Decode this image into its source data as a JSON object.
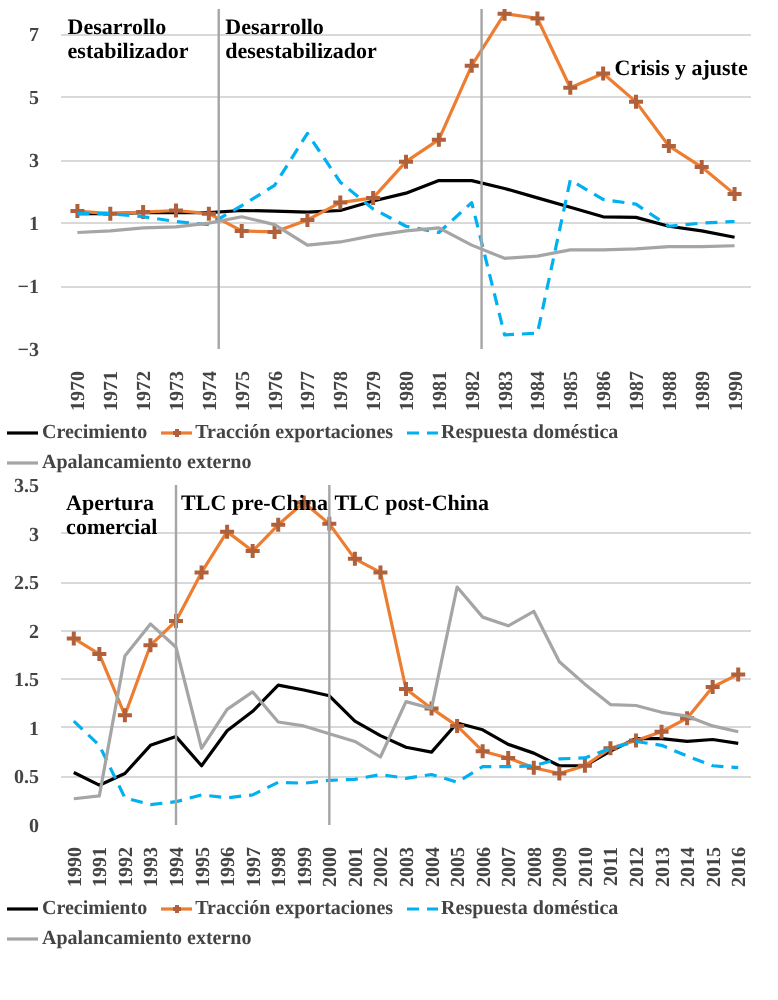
{
  "chart_data": [
    {
      "type": "line",
      "x": [
        1970,
        1971,
        1972,
        1973,
        1974,
        1975,
        1976,
        1977,
        1978,
        1979,
        1980,
        1981,
        1982,
        1983,
        1984,
        1985,
        1986,
        1987,
        1988,
        1989,
        1990
      ],
      "xlim": [
        1969.5,
        1990.5
      ],
      "xticks": [
        1970,
        1971,
        1972,
        1973,
        1974,
        1975,
        1976,
        1977,
        1978,
        1979,
        1980,
        1981,
        1982,
        1983,
        1984,
        1985,
        1986,
        1987,
        1988,
        1989,
        1990
      ],
      "ylim": [
        -3,
        7.8
      ],
      "yticks": [
        -3,
        -1,
        1,
        3,
        5,
        7
      ],
      "grid": "y",
      "legend": "bottom",
      "series": [
        {
          "name": "Crecimiento",
          "color": "#000000",
          "values": [
            1.3,
            1.3,
            1.33,
            1.33,
            1.33,
            1.4,
            1.38,
            1.35,
            1.4,
            1.7,
            1.95,
            2.35,
            2.35,
            2.1,
            1.8,
            1.5,
            1.2,
            1.18,
            0.9,
            0.75,
            0.55
          ]
        },
        {
          "name": "Tracción exportaciones",
          "color": "#ed7d31",
          "marker": "cross",
          "values": [
            1.38,
            1.3,
            1.35,
            1.4,
            1.3,
            0.75,
            0.72,
            1.1,
            1.65,
            1.8,
            2.95,
            3.65,
            6.0,
            7.65,
            7.5,
            5.3,
            5.75,
            4.85,
            3.45,
            2.78,
            1.92
          ]
        },
        {
          "name": "Respuesta doméstica",
          "color": "#00b0f0",
          "line_style": "dashed",
          "values": [
            1.3,
            1.3,
            1.2,
            1.05,
            0.95,
            1.55,
            2.2,
            3.85,
            2.3,
            1.45,
            0.9,
            0.7,
            1.65,
            -2.55,
            -2.5,
            2.37,
            1.75,
            1.6,
            0.9,
            1.0,
            1.05
          ]
        },
        {
          "name": "Apalancamiento externo",
          "color": "#a5a5a5",
          "values": [
            0.7,
            0.75,
            0.85,
            0.88,
            1.0,
            1.2,
            0.95,
            0.3,
            0.4,
            0.6,
            0.75,
            0.85,
            0.3,
            -0.12,
            -0.05,
            0.15,
            0.15,
            0.18,
            0.25,
            0.25,
            0.28
          ]
        }
      ],
      "ref_lines": [
        {
          "axis": "x",
          "value": 1974.3,
          "color": "#a5a5a5"
        },
        {
          "axis": "x",
          "value": 1982.3,
          "color": "#a5a5a5"
        }
      ],
      "annotations": [
        "Desarrollo\nestabilizador",
        "Desarrollo\ndesestabilizador",
        "Crisis y ajuste"
      ]
    },
    {
      "type": "line",
      "x": [
        1990,
        1991,
        1992,
        1993,
        1994,
        1995,
        1996,
        1997,
        1998,
        1999,
        2000,
        2001,
        2002,
        2003,
        2004,
        2005,
        2006,
        2007,
        2008,
        2009,
        2010,
        2011,
        2012,
        2013,
        2014,
        2015,
        2016
      ],
      "xlim": [
        1989.5,
        2016.5
      ],
      "xticks": [
        1990,
        1991,
        1992,
        1993,
        1994,
        1995,
        1996,
        1997,
        1998,
        1999,
        2000,
        2001,
        2002,
        2003,
        2004,
        2005,
        2006,
        2007,
        2008,
        2009,
        2010,
        2011,
        2012,
        2013,
        2014,
        2015,
        2016
      ],
      "ylim": [
        0,
        3.5
      ],
      "yticks": [
        0,
        0.5,
        1,
        1.5,
        2,
        2.5,
        3,
        3.5
      ],
      "grid": "y",
      "legend": "bottom",
      "series": [
        {
          "name": "Crecimiento",
          "color": "#000000",
          "values": [
            0.54,
            0.41,
            0.53,
            0.82,
            0.91,
            0.61,
            0.97,
            1.17,
            1.44,
            1.39,
            1.33,
            1.07,
            0.92,
            0.8,
            0.75,
            1.05,
            0.98,
            0.83,
            0.74,
            0.61,
            0.61,
            0.76,
            0.89,
            0.89,
            0.86,
            0.88,
            0.84
          ]
        },
        {
          "name": "Tracción exportaciones",
          "color": "#ed7d31",
          "marker": "cross",
          "values": [
            1.92,
            1.76,
            1.13,
            1.85,
            2.1,
            2.6,
            3.02,
            2.82,
            3.09,
            3.32,
            3.1,
            2.74,
            2.6,
            1.4,
            1.2,
            1.02,
            0.76,
            0.69,
            0.59,
            0.53,
            0.61,
            0.79,
            0.87,
            0.96,
            1.1,
            1.42,
            1.55
          ]
        },
        {
          "name": "Respuesta doméstica",
          "color": "#00b0f0",
          "line_style": "dashed",
          "values": [
            1.07,
            0.82,
            0.28,
            0.21,
            0.24,
            0.31,
            0.28,
            0.31,
            0.44,
            0.43,
            0.46,
            0.47,
            0.52,
            0.48,
            0.52,
            0.44,
            0.6,
            0.6,
            0.61,
            0.68,
            0.69,
            0.79,
            0.86,
            0.82,
            0.71,
            0.61,
            0.59
          ]
        },
        {
          "name": "Apalancamiento externo",
          "color": "#a5a5a5",
          "values": [
            0.27,
            0.3,
            1.74,
            2.07,
            1.83,
            0.79,
            1.19,
            1.37,
            1.06,
            1.02,
            0.94,
            0.86,
            0.7,
            1.27,
            1.2,
            2.45,
            2.14,
            2.05,
            2.2,
            1.68,
            1.45,
            1.24,
            1.23,
            1.16,
            1.12,
            1.02,
            0.96
          ]
        }
      ],
      "ref_lines": [
        {
          "axis": "x",
          "value": 1994,
          "color": "#a5a5a5"
        },
        {
          "axis": "x",
          "value": 2000,
          "color": "#a5a5a5"
        }
      ],
      "annotations": [
        "Apertura\ncomercial",
        "TLC pre-China",
        "TLC post-China"
      ]
    }
  ]
}
